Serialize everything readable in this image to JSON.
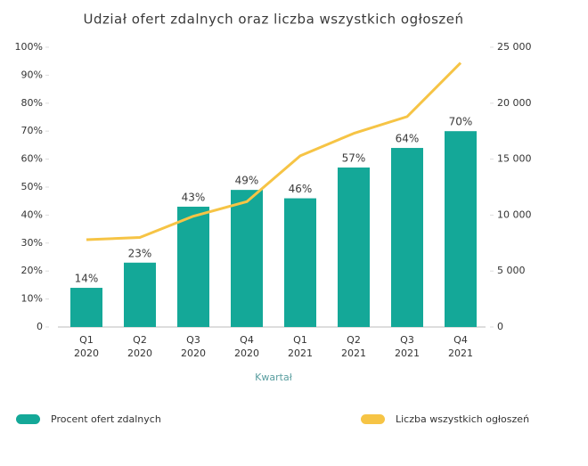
{
  "chart_data": {
    "type": "bar",
    "title": "Udział ofert zdalnych oraz liczba wszystkich ogłoszeń",
    "x_label": "Kwartał",
    "categories": [
      [
        "Q1",
        "2020"
      ],
      [
        "Q2",
        "2020"
      ],
      [
        "Q3",
        "2020"
      ],
      [
        "Q4",
        "2020"
      ],
      [
        "Q1",
        "2021"
      ],
      [
        "Q2",
        "2021"
      ],
      [
        "Q3",
        "2021"
      ],
      [
        "Q4",
        "2021"
      ]
    ],
    "series": [
      {
        "name": "Procent ofert zdalnych",
        "type": "bar",
        "color": "#14a898",
        "values": [
          14,
          23,
          43,
          49,
          46,
          57,
          64,
          70
        ],
        "value_labels": [
          "14%",
          "23%",
          "43%",
          "49%",
          "46%",
          "57%",
          "64%",
          "70%"
        ]
      },
      {
        "name": "Liczba wszystkich ogłoszeń",
        "type": "line",
        "axis": "y2",
        "color": "#f6c445",
        "values": [
          7800,
          8000,
          9900,
          11200,
          15300,
          17300,
          18800,
          23600
        ]
      }
    ],
    "ylim": [
      0,
      100
    ],
    "yticks": [
      0,
      {
        "value": 10,
        "label": "10%"
      },
      {
        "value": 20,
        "label": "20%"
      },
      {
        "value": 30,
        "label": "30%"
      },
      {
        "value": 40,
        "label": "40%"
      },
      {
        "value": 50,
        "label": "50%"
      },
      {
        "value": 60,
        "label": "60%"
      },
      {
        "value": 70,
        "label": "70%"
      },
      {
        "value": 80,
        "label": "80%"
      },
      {
        "value": 90,
        "label": "90%"
      },
      {
        "value": 100,
        "label": "100%"
      }
    ],
    "y2lim": [
      0,
      25000
    ],
    "y2ticks": [
      0,
      {
        "value": 5000,
        "label": "5 000"
      },
      {
        "value": 10000,
        "label": "10 000"
      },
      {
        "value": 15000,
        "label": "15 000"
      },
      {
        "value": 20000,
        "label": "20 000"
      },
      {
        "value": 25000,
        "label": "25 000"
      }
    ],
    "legend": "bottom"
  }
}
